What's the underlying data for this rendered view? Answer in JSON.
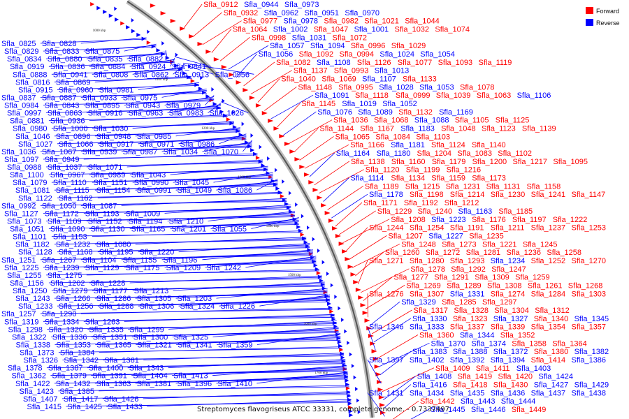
{
  "caption": "Streptomyces flavogriseus ATCC 33331, complete genome. - 0.7337497",
  "legend": [
    {
      "label": "Forward",
      "color": "#ff0000"
    },
    {
      "label": "Reverse",
      "color": "#0000ff"
    }
  ],
  "colors": {
    "forward": "#ff0000",
    "reverse": "#0000ff",
    "backbone": "#8a8a8a"
  },
  "scale_ticks": [
    "1000 kbp",
    "1100 kbp",
    "1200 kbp",
    "1300 kbp",
    "1400 kbp",
    "1500 kbp",
    "1600 kbp",
    "1700 kbp"
  ],
  "labels_left": [
    "Sfla_0825",
    "Sfla_0828",
    "Sfla_0829",
    "Sfla_0833",
    "Sfla_0875",
    "Sfla_0834",
    "Sfla_0880",
    "Sfla_0835",
    "Sfla_0882",
    "Sfla_0919",
    "Sfla_0836",
    "Sfla_0884",
    "Sfla_0924",
    "Sfla_0841",
    "Sfla_0888",
    "Sfla_0941",
    "Sfla_0808",
    "Sfla_0862",
    "Sfla_0913",
    "Sfla_0956",
    "Sfla_0816",
    "Sfla_0869",
    "Sfla_0915",
    "Sfla_0960",
    "Sfla_0981",
    "Sfla_0837",
    "Sfla_0887",
    "Sfla_0933",
    "Sfla_0975",
    "Sfla_0984",
    "Sfla_0843",
    "Sfla_0895",
    "Sfla_0943",
    "Sfla_0979",
    "Sfla_0997",
    "Sfla_0863",
    "Sfla_0916",
    "Sfla_0963",
    "Sfla_0983",
    "Sfla_1026",
    "Sfla_0881",
    "Sfla_0936",
    "Sfla_0980",
    "Sfla_1000",
    "Sfla_1030",
    "Sfla_1046",
    "Sfla_0896",
    "Sfla_0948",
    "Sfla_0985",
    "Sfla_1027",
    "Sfla_1066",
    "Sfla_0917",
    "Sfla_0971",
    "Sfla_0986",
    "Sfla_1036",
    "Sfla_1067",
    "Sfla_0939",
    "Sfla_0987",
    "Sfla_1034",
    "Sfla_1070",
    "Sfla_1097",
    "Sfla_0949",
    "Sfla_0988",
    "Sfla_1037",
    "Sfla_1071",
    "Sfla_1100",
    "Sfla_0967",
    "Sfla_0989",
    "Sfla_1043",
    "Sfla_1079",
    "Sfla_1110",
    "Sfla_1151",
    "Sfla_0990",
    "Sfla_1045",
    "Sfla_1081",
    "Sfla_1115",
    "Sfla_1154",
    "Sfla_0991",
    "Sfla_1049",
    "Sfla_1086",
    "Sfla_1122",
    "Sfla_1162",
    "Sfla_0992",
    "Sfla_1050",
    "Sfla_1087",
    "Sfla_1127",
    "Sfla_1172",
    "Sfla_1193",
    "Sfla_1009",
    "Sfla_1073",
    "Sfla_1109",
    "Sfla_1152",
    "Sfla_1194",
    "Sfla_1210",
    "Sfla_1051",
    "Sfla_1090",
    "Sfla_1130",
    "Sfla_1165",
    "Sfla_1201",
    "Sfla_1055",
    "Sfla_1101",
    "Sfla_1153",
    "Sfla_1182",
    "Sfla_1232",
    "Sfla_1080",
    "Sfla_1128",
    "Sfla_1168",
    "Sfla_1195",
    "Sfla_1220",
    "Sfla_1251",
    "Sfla_1267",
    "Sfla_1104",
    "Sfla_1155",
    "Sfla_1196",
    "Sfla_1225",
    "Sfla_1239",
    "Sfla_1129",
    "Sfla_1175",
    "Sfla_1209",
    "Sfla_1242",
    "Sfla_1255",
    "Sfla_1275",
    "Sfla_1156",
    "Sfla_1202",
    "Sfla_1228",
    "Sfla_1250",
    "Sfla_1279",
    "Sfla_1177",
    "Sfla_1213",
    "Sfla_1243",
    "Sfla_1266",
    "Sfla_1286",
    "Sfla_1305",
    "Sfla_1203",
    "Sfla_1233",
    "Sfla_1256",
    "Sfla_1288",
    "Sfla_1306",
    "Sfla_1324",
    "Sfla_1226",
    "Sfla_1257",
    "Sfla_1290",
    "Sfla_1319",
    "Sfla_1334",
    "Sfla_1263",
    "Sfla_1298",
    "Sfla_1320",
    "Sfla_1335",
    "Sfla_1299",
    "Sfla_1322",
    "Sfla_1336",
    "Sfla_1351",
    "Sfla_1300",
    "Sfla_1325",
    "Sfla_1338",
    "Sfla_1353",
    "Sfla_1365",
    "Sfla_1321",
    "Sfla_1341",
    "Sfla_1359",
    "Sfla_1373",
    "Sfla_1384",
    "Sfla_1326",
    "Sfla_1342",
    "Sfla_1361",
    "Sfla_1378",
    "Sfla_1387",
    "Sfla_1400",
    "Sfla_1343",
    "Sfla_1362",
    "Sfla_1379",
    "Sfla_1391",
    "Sfla_1404",
    "Sfla_1413",
    "Sfla_1422",
    "Sfla_1432",
    "Sfla_1363",
    "Sfla_1381",
    "Sfla_1396",
    "Sfla_1410",
    "Sfla_1423",
    "Sfla_1385",
    "Sfla_1407",
    "Sfla_1417",
    "Sfla_1426",
    "Sfla_1415",
    "Sfla_1425",
    "Sfla_1433"
  ],
  "labels_right": [
    {
      "t": "Sfla_0912",
      "s": "f"
    },
    {
      "t": "Sfla_0944",
      "s": "r"
    },
    {
      "t": "Sfla_0973",
      "s": "r"
    },
    {
      "t": "Sfla_0932",
      "s": "f"
    },
    {
      "t": "Sfla_0962",
      "s": "r"
    },
    {
      "t": "Sfla_0951",
      "s": "r"
    },
    {
      "t": "Sfla_0970",
      "s": "r"
    },
    {
      "t": "Sfla_0977",
      "s": "f"
    },
    {
      "t": "Sfla_0978",
      "s": "r"
    },
    {
      "t": "Sfla_0982",
      "s": "f"
    },
    {
      "t": "Sfla_1021",
      "s": "f"
    },
    {
      "t": "Sfla_1044",
      "s": "f"
    },
    {
      "t": "Sfla_1064",
      "s": "f"
    },
    {
      "t": "Sfla_1002",
      "s": "r"
    },
    {
      "t": "Sfla_1047",
      "s": "f"
    },
    {
      "t": "Sfla_1001",
      "s": "r"
    },
    {
      "t": "Sfla_1032",
      "s": "f"
    },
    {
      "t": "Sfla_1074",
      "s": "f"
    },
    {
      "t": "Sfla_0998",
      "s": "f"
    },
    {
      "t": "Sfla_1031",
      "s": "r"
    },
    {
      "t": "Sfla_1072",
      "s": "f"
    },
    {
      "t": "Sfla_1057",
      "s": "r"
    },
    {
      "t": "Sfla_1094",
      "s": "r"
    },
    {
      "t": "Sfla_0996",
      "s": "f"
    },
    {
      "t": "Sfla_1029",
      "s": "f"
    },
    {
      "t": "Sfla_1056",
      "s": "r"
    },
    {
      "t": "Sfla_1092",
      "s": "f"
    },
    {
      "t": "Sfla_0994",
      "s": "f"
    },
    {
      "t": "Sfla_1024",
      "s": "r"
    },
    {
      "t": "Sfla_1054",
      "s": "r"
    },
    {
      "t": "Sfla_1082",
      "s": "f"
    },
    {
      "t": "Sfla_1108",
      "s": "r"
    },
    {
      "t": "Sfla_1126",
      "s": "f"
    },
    {
      "t": "Sfla_1077",
      "s": "f"
    },
    {
      "t": "Sfla_1093",
      "s": "f"
    },
    {
      "t": "Sfla_1119",
      "s": "f"
    },
    {
      "t": "Sfla_1137",
      "s": "f"
    },
    {
      "t": "Sfla_0993",
      "s": "f"
    },
    {
      "t": "Sfla_1013",
      "s": "r"
    },
    {
      "t": "Sfla_1040",
      "s": "f"
    },
    {
      "t": "Sfla_1069",
      "s": "f"
    },
    {
      "t": "Sfla_1107",
      "s": "r"
    },
    {
      "t": "Sfla_1133",
      "s": "f"
    },
    {
      "t": "Sfla_1148",
      "s": "f"
    },
    {
      "t": "Sfla_0995",
      "s": "f"
    },
    {
      "t": "Sfla_1028",
      "s": "r"
    },
    {
      "t": "Sfla_1053",
      "s": "r"
    },
    {
      "t": "Sfla_1078",
      "s": "f"
    },
    {
      "t": "Sfla_1091",
      "s": "r"
    },
    {
      "t": "Sfla_1118",
      "s": "f"
    },
    {
      "t": "Sfla_0999",
      "s": "f"
    },
    {
      "t": "Sfla_1039",
      "s": "f"
    },
    {
      "t": "Sfla_1063",
      "s": "f"
    },
    {
      "t": "Sfla_1106",
      "s": "r"
    },
    {
      "t": "Sfla_1145",
      "s": "f"
    },
    {
      "t": "Sfla_1019",
      "s": "r"
    },
    {
      "t": "Sfla_1052",
      "s": "r"
    },
    {
      "t": "Sfla_1076",
      "s": "r"
    },
    {
      "t": "Sfla_1089",
      "s": "r"
    },
    {
      "t": "Sfla_1132",
      "s": "f"
    },
    {
      "t": "Sfla_1169",
      "s": "r"
    },
    {
      "t": "Sfla_1036",
      "s": "f"
    },
    {
      "t": "Sfla_1068",
      "s": "f"
    },
    {
      "t": "Sfla_1088",
      "s": "r"
    },
    {
      "t": "Sfla_1105",
      "s": "f"
    },
    {
      "t": "Sfla_1125",
      "s": "f"
    },
    {
      "t": "Sfla_1144",
      "s": "f"
    },
    {
      "t": "Sfla_1167",
      "s": "f"
    },
    {
      "t": "Sfla_1183",
      "s": "r"
    },
    {
      "t": "Sfla_1048",
      "s": "f"
    },
    {
      "t": "Sfla_1123",
      "s": "f"
    },
    {
      "t": "Sfla_1139",
      "s": "f"
    },
    {
      "t": "Sfla_1065",
      "s": "f"
    },
    {
      "t": "Sfla_1084",
      "s": "f"
    },
    {
      "t": "Sfla_1103",
      "s": "f"
    },
    {
      "t": "Sfla_1166",
      "s": "f"
    },
    {
      "t": "Sfla_1181",
      "s": "r"
    },
    {
      "t": "Sfla_1124",
      "s": "f"
    },
    {
      "t": "Sfla_1140",
      "s": "f"
    },
    {
      "t": "Sfla_1164",
      "s": "r"
    },
    {
      "t": "Sfla_1180",
      "s": "r"
    },
    {
      "t": "Sfla_1204",
      "s": "f"
    },
    {
      "t": "Sfla_1083",
      "s": "f"
    },
    {
      "t": "Sfla_1102",
      "s": "f"
    },
    {
      "t": "Sfla_1138",
      "s": "f"
    },
    {
      "t": "Sfla_1160",
      "s": "f"
    },
    {
      "t": "Sfla_1179",
      "s": "f"
    },
    {
      "t": "Sfla_1200",
      "s": "f"
    },
    {
      "t": "Sfla_1217",
      "s": "f"
    },
    {
      "t": "Sfla_1095",
      "s": "f"
    },
    {
      "t": "Sfla_1120",
      "s": "f"
    },
    {
      "t": "Sfla_1199",
      "s": "f"
    },
    {
      "t": "Sfla_1216",
      "s": "f"
    },
    {
      "t": "Sfla_1114",
      "s": "r"
    },
    {
      "t": "Sfla_1134",
      "s": "f"
    },
    {
      "t": "Sfla_1159",
      "s": "f"
    },
    {
      "t": "Sfla_1173",
      "s": "f"
    },
    {
      "t": "Sfla_1189",
      "s": "f"
    },
    {
      "t": "Sfla_1215",
      "s": "f"
    },
    {
      "t": "Sfla_1231",
      "s": "f"
    },
    {
      "t": "Sfla_1131",
      "s": "f"
    },
    {
      "t": "Sfla_1158",
      "s": "f"
    },
    {
      "t": "Sfla_1178",
      "s": "r"
    },
    {
      "t": "Sfla_1198",
      "s": "f"
    },
    {
      "t": "Sfla_1214",
      "s": "f"
    },
    {
      "t": "Sfla_1230",
      "s": "f"
    },
    {
      "t": "Sfla_1241",
      "s": "f"
    },
    {
      "t": "Sfla_1147",
      "s": "f"
    },
    {
      "t": "Sfla_1171",
      "s": "f"
    },
    {
      "t": "Sfla_1192",
      "s": "f"
    },
    {
      "t": "Sfla_1212",
      "s": "f"
    },
    {
      "t": "Sfla_1229",
      "s": "f"
    },
    {
      "t": "Sfla_1240",
      "s": "f"
    },
    {
      "t": "Sfla_1163",
      "s": "r"
    },
    {
      "t": "Sfla_1185",
      "s": "f"
    },
    {
      "t": "Sfla_1208",
      "s": "f"
    },
    {
      "t": "Sfla_1223",
      "s": "r"
    },
    {
      "t": "Sfla_1176",
      "s": "f"
    },
    {
      "t": "Sfla_1197",
      "s": "f"
    },
    {
      "t": "Sfla_1222",
      "s": "f"
    },
    {
      "t": "Sfla_1244",
      "s": "f"
    },
    {
      "t": "Sfla_1254",
      "s": "f"
    },
    {
      "t": "Sfla_1191",
      "s": "f"
    },
    {
      "t": "Sfla_1211",
      "s": "f"
    },
    {
      "t": "Sfla_1237",
      "s": "f"
    },
    {
      "t": "Sfla_1253",
      "s": "f"
    },
    {
      "t": "Sfla_1207",
      "s": "f"
    },
    {
      "t": "Sfla_1227",
      "s": "r"
    },
    {
      "t": "Sfla_1235",
      "s": "f"
    },
    {
      "t": "Sfla_1248",
      "s": "f"
    },
    {
      "t": "Sfla_1273",
      "s": "f"
    },
    {
      "t": "Sfla_1221",
      "s": "f"
    },
    {
      "t": "Sfla_1245",
      "s": "f"
    },
    {
      "t": "Sfla_1260",
      "s": "f"
    },
    {
      "t": "Sfla_1272",
      "s": "f"
    },
    {
      "t": "Sfla_1281",
      "s": "f"
    },
    {
      "t": "Sfla_1236",
      "s": "f"
    },
    {
      "t": "Sfla_1258",
      "s": "f"
    },
    {
      "t": "Sfla_1271",
      "s": "f"
    },
    {
      "t": "Sfla_1280",
      "s": "f"
    },
    {
      "t": "Sfla_1293",
      "s": "f"
    },
    {
      "t": "Sfla_1234",
      "s": "r"
    },
    {
      "t": "Sfla_1252",
      "s": "f"
    },
    {
      "t": "Sfla_1270",
      "s": "f"
    },
    {
      "t": "Sfla_1278",
      "s": "f"
    },
    {
      "t": "Sfla_1292",
      "s": "f"
    },
    {
      "t": "Sfla_1247",
      "s": "f"
    },
    {
      "t": "Sfla_1277",
      "s": "f"
    },
    {
      "t": "Sfla_1291",
      "s": "f"
    },
    {
      "t": "Sfla_1309",
      "s": "f"
    },
    {
      "t": "Sfla_1259",
      "s": "f"
    },
    {
      "t": "Sfla_1269",
      "s": "f"
    },
    {
      "t": "Sfla_1289",
      "s": "f"
    },
    {
      "t": "Sfla_1308",
      "s": "f"
    },
    {
      "t": "Sfla_1261",
      "s": "f"
    },
    {
      "t": "Sfla_1268",
      "s": "f"
    },
    {
      "t": "Sfla_1276",
      "s": "f"
    },
    {
      "t": "Sfla_1307",
      "s": "f"
    },
    {
      "t": "Sfla_1331",
      "s": "r"
    },
    {
      "t": "Sfla_1274",
      "s": "f"
    },
    {
      "t": "Sfla_1284",
      "s": "f"
    },
    {
      "t": "Sfla_1303",
      "s": "f"
    },
    {
      "t": "Sfla_1329",
      "s": "r"
    },
    {
      "t": "Sfla_1285",
      "s": "f"
    },
    {
      "t": "Sfla_1297",
      "s": "f"
    },
    {
      "t": "Sfla_1317",
      "s": "f"
    },
    {
      "t": "Sfla_1328",
      "s": "f"
    },
    {
      "t": "Sfla_1304",
      "s": "f"
    },
    {
      "t": "Sfla_1312",
      "s": "f"
    },
    {
      "t": "Sfla_1330",
      "s": "r"
    },
    {
      "t": "Sfla_1323",
      "s": "f"
    },
    {
      "t": "Sfla_1327",
      "s": "r"
    },
    {
      "t": "Sfla_1340",
      "s": "f"
    },
    {
      "t": "Sfla_1345",
      "s": "r"
    },
    {
      "t": "Sfla_1346",
      "s": "r"
    },
    {
      "t": "Sfla_1333",
      "s": "r"
    },
    {
      "t": "Sfla_1337",
      "s": "f"
    },
    {
      "t": "Sfla_1339",
      "s": "f"
    },
    {
      "t": "Sfla_1354",
      "s": "f"
    },
    {
      "t": "Sfla_1357",
      "s": "f"
    },
    {
      "t": "Sfla_1360",
      "s": "f"
    },
    {
      "t": "Sfla_1344",
      "s": "r"
    },
    {
      "t": "Sfla_1352",
      "s": "f"
    },
    {
      "t": "Sfla_1370",
      "s": "r"
    },
    {
      "t": "Sfla_1374",
      "s": "r"
    },
    {
      "t": "Sfla_1358",
      "s": "f"
    },
    {
      "t": "Sfla_1364",
      "s": "f"
    },
    {
      "t": "Sfla_1383",
      "s": "r"
    },
    {
      "t": "Sfla_1388",
      "s": "r"
    },
    {
      "t": "Sfla_1372",
      "s": "r"
    },
    {
      "t": "Sfla_1380",
      "s": "f"
    },
    {
      "t": "Sfla_1382",
      "s": "r"
    },
    {
      "t": "Sfla_1397",
      "s": "r"
    },
    {
      "t": "Sfla_1402",
      "s": "r"
    },
    {
      "t": "Sfla_1392",
      "s": "r"
    },
    {
      "t": "Sfla_1394",
      "s": "r"
    },
    {
      "t": "Sfla_1414",
      "s": "f"
    },
    {
      "t": "Sfla_1386",
      "s": "r"
    },
    {
      "t": "Sfla_1409",
      "s": "f"
    },
    {
      "t": "Sfla_1411",
      "s": "f"
    },
    {
      "t": "Sfla_1403",
      "s": "r"
    },
    {
      "t": "Sfla_1408",
      "s": "r"
    },
    {
      "t": "Sfla_1419",
      "s": "f"
    },
    {
      "t": "Sfla_1420",
      "s": "f"
    },
    {
      "t": "Sfla_1424",
      "s": "r"
    },
    {
      "t": "Sfla_1416",
      "s": "r"
    },
    {
      "t": "Sfla_1418",
      "s": "f"
    },
    {
      "t": "Sfla_1430",
      "s": "f"
    },
    {
      "t": "Sfla_1427",
      "s": "r"
    },
    {
      "t": "Sfla_1429",
      "s": "r"
    },
    {
      "t": "Sfla_1431",
      "s": "r"
    },
    {
      "t": "Sfla_1434",
      "s": "r"
    },
    {
      "t": "Sfla_1435",
      "s": "r"
    },
    {
      "t": "Sfla_1436",
      "s": "r"
    },
    {
      "t": "Sfla_1437",
      "s": "r"
    },
    {
      "t": "Sfla_1438",
      "s": "r"
    },
    {
      "t": "Sfla_1442",
      "s": "f"
    },
    {
      "t": "Sfla_1443",
      "s": "r"
    },
    {
      "t": "Sfla_1444",
      "s": "r"
    },
    {
      "t": "Sfla_1445",
      "s": "r"
    },
    {
      "t": "Sfla_1446",
      "s": "r"
    },
    {
      "t": "Sfla_1449",
      "s": "f"
    }
  ]
}
